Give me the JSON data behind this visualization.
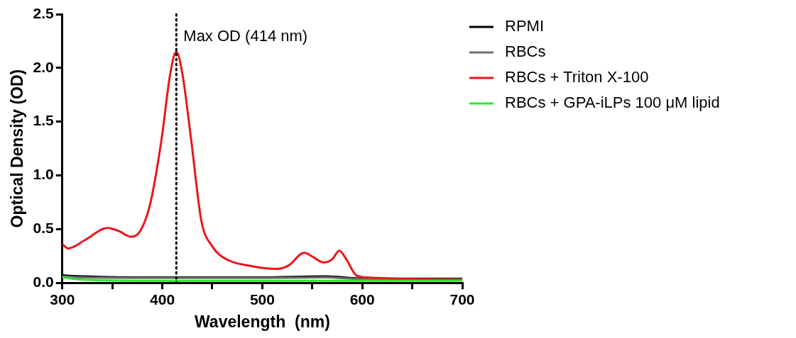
{
  "chart_data": {
    "type": "line",
    "xlabel": "Wavelength  (nm)",
    "ylabel": "Optical Density (OD)",
    "xlim": [
      300,
      700
    ],
    "xticks": [
      300,
      {
        "value": 350,
        "label": null
      },
      400,
      {
        "value": 450,
        "label": null
      },
      500,
      {
        "value": 550,
        "label": null
      },
      600,
      {
        "value": 650,
        "label": null
      },
      700
    ],
    "ylim": [
      0,
      2.5
    ],
    "yticks": [
      {
        "value": 0,
        "label": "0.0"
      },
      0.5,
      {
        "value": 1,
        "label": "1.0"
      },
      1.5,
      {
        "value": 2,
        "label": "2.0"
      },
      2.5
    ],
    "grid": false,
    "legend": "top right",
    "marker": "none",
    "line_style": "solid",
    "ref_lines": [
      {
        "axis": "x",
        "value": 414,
        "label": "Max OD (414 nm)",
        "color": "#000000",
        "line_style": "dotted"
      }
    ],
    "series": [
      {
        "name": "RPMI",
        "color": "#000000",
        "x": [
          300,
          320,
          400,
          500,
          563,
          600,
          700
        ],
        "values": [
          0.07,
          0.06,
          0.05,
          0.05,
          0.06,
          0.04,
          0.04
        ]
      },
      {
        "name": "RBCs",
        "color": "#707070",
        "x": [
          300,
          320,
          400,
          500,
          563,
          600,
          700
        ],
        "values": [
          0.06,
          0.05,
          0.045,
          0.045,
          0.05,
          0.035,
          0.035
        ]
      },
      {
        "name": "RBCs + Triton X-100",
        "color": "#e8171b",
        "x": [
          300,
          306,
          323,
          345,
          357,
          368,
          377,
          388,
          399,
          408,
          414,
          420,
          429,
          439,
          450,
          464,
          487,
          515,
          526,
          542,
          551,
          561,
          570,
          577,
          584,
          594,
          605,
          633,
          700
        ],
        "values": [
          0.36,
          0.32,
          0.4,
          0.51,
          0.48,
          0.43,
          0.47,
          0.74,
          1.32,
          1.95,
          2.15,
          1.95,
          1.32,
          0.58,
          0.34,
          0.22,
          0.16,
          0.13,
          0.16,
          0.28,
          0.24,
          0.19,
          0.22,
          0.3,
          0.22,
          0.07,
          0.05,
          0.04,
          0.03
        ]
      },
      {
        "name": "RBCs + GPA-iLPs 100 μM lipid",
        "color": "#2ee82e",
        "x": [
          300,
          320,
          400,
          500,
          600,
          700
        ],
        "values": [
          0.05,
          0.03,
          0.02,
          0.02,
          0.02,
          0.02
        ]
      }
    ]
  }
}
